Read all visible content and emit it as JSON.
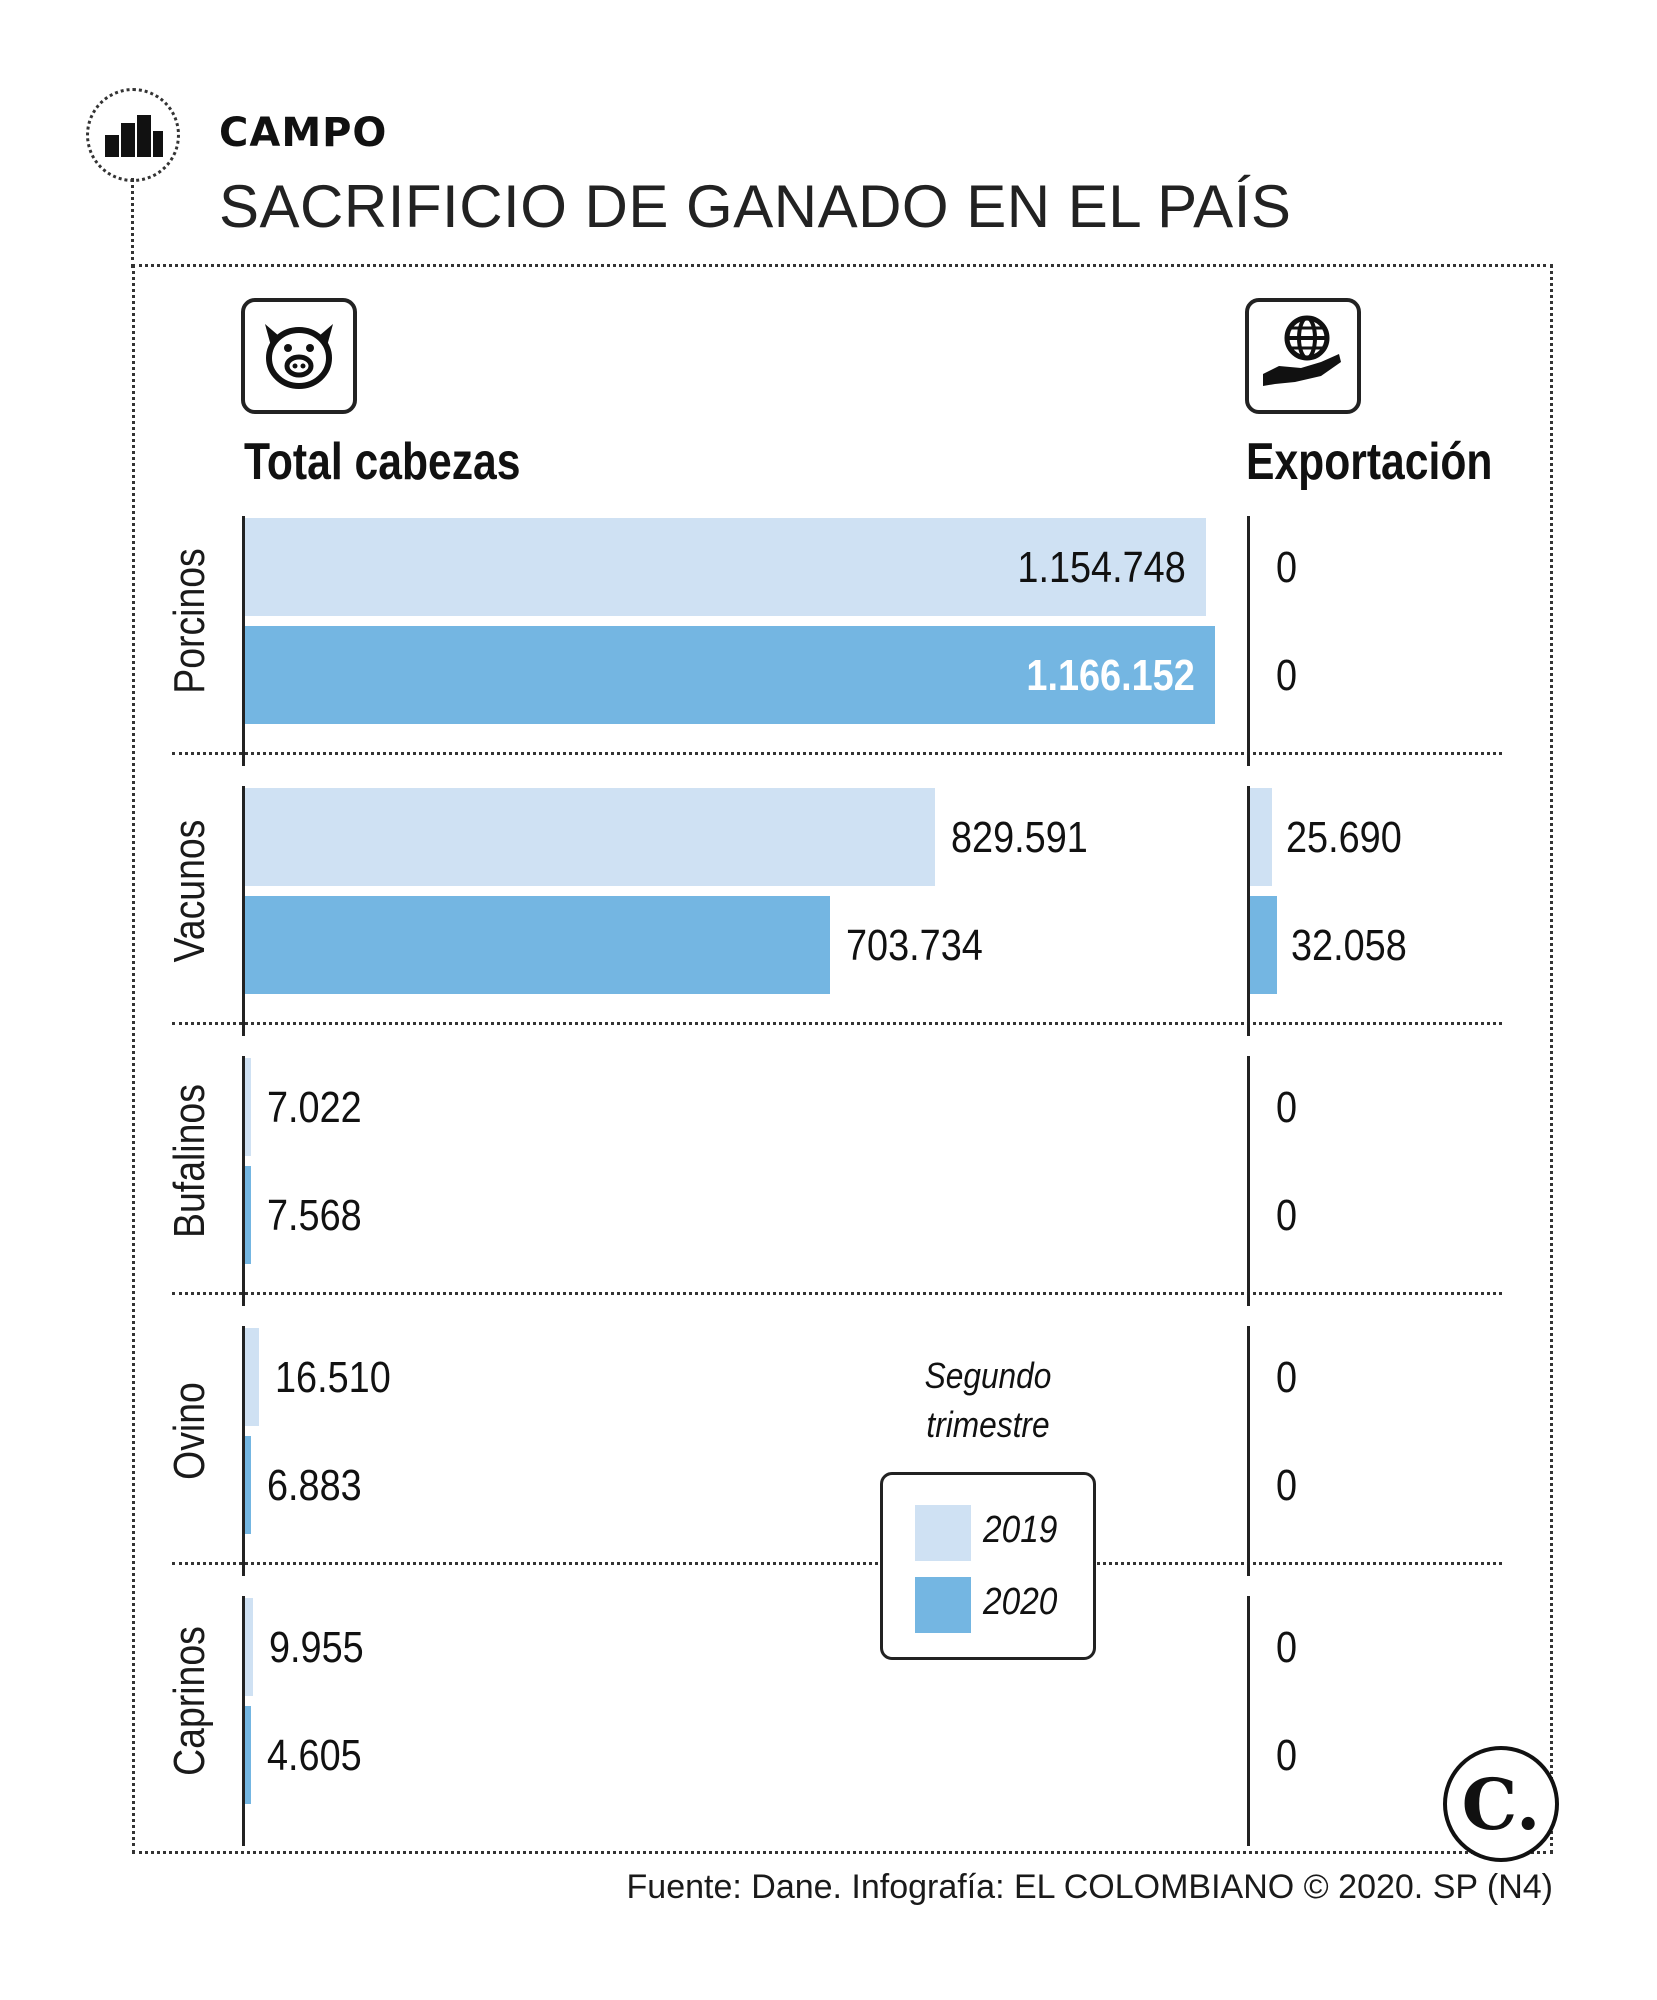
{
  "header": {
    "kicker": "CAMPO",
    "title": "SACRIFICIO DE GANADO EN EL PAÍS"
  },
  "columns": {
    "total_label": "Total cabezas",
    "export_label": "Exportación",
    "total_icon": "pig-icon",
    "export_icon": "globe-in-hand-icon"
  },
  "legend": {
    "title_line1": "Segundo",
    "title_line2": "trimestre",
    "items": [
      {
        "label": "2019",
        "color": "#cfe1f3"
      },
      {
        "label": "2020",
        "color": "#74b6e2"
      }
    ]
  },
  "footer": {
    "source": "Fuente: Dane. Infografía: EL COLOMBIANO © 2020. SP (N4)"
  },
  "chart_data": {
    "type": "bar",
    "orientation": "horizontal",
    "title": "SACRIFICIO DE GANADO EN EL PAÍS",
    "categories": [
      "Porcinos",
      "Vacunos",
      "Bufalinos",
      "Ovino",
      "Caprinos"
    ],
    "series": [
      {
        "name": "2019",
        "color": "#cfe1f3",
        "total": [
          1154748,
          829591,
          7022,
          16510,
          9955
        ],
        "total_labels": [
          "1.154.748",
          "829.591",
          "7.022",
          "16.510",
          "9.955"
        ],
        "export": [
          0,
          25690,
          0,
          0,
          0
        ],
        "export_labels": [
          "0",
          "25.690",
          "0",
          "0",
          "0"
        ]
      },
      {
        "name": "2020",
        "color": "#74b6e2",
        "total": [
          1166152,
          703734,
          7568,
          6883,
          4605
        ],
        "total_labels": [
          "1.166.152",
          "703.734",
          "7.568",
          "6.883",
          "4.605"
        ],
        "export": [
          0,
          32058,
          0,
          0,
          0
        ],
        "export_labels": [
          "0",
          "32.058",
          "0",
          "0",
          "0"
        ]
      }
    ],
    "total_max": 1166152,
    "export_scale": "same"
  }
}
